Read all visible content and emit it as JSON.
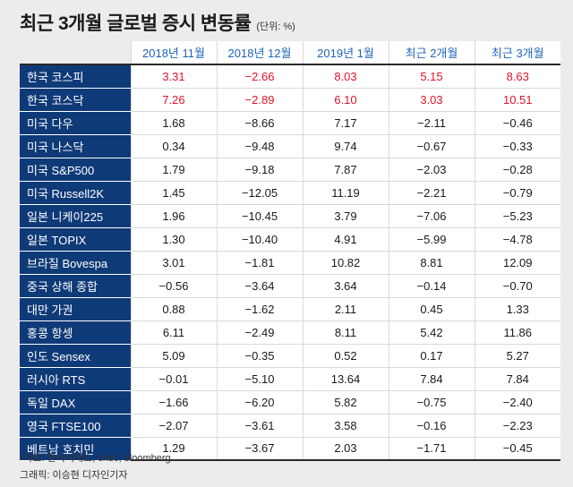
{
  "title": "최근 3개월 글로벌 증시 변동률",
  "unit": "(단위: %)",
  "source": "*자료: 한국거래소, cnbc, bloomberg",
  "credit": "그래픽: 이승현 디자인기자",
  "highlight_color": "#e0142a",
  "header_color": "#1f64b8",
  "row_label_bg": "#0f3a78",
  "chart_data": {
    "type": "table",
    "columns": [
      "2018년 11월",
      "2018년 12월",
      "2019년 1월",
      "최근 2개월",
      "최근 3개월"
    ],
    "rows": [
      {
        "name": "한국 코스피",
        "highlight": true,
        "values": [
          "3.31",
          "−2.66",
          "8.03",
          "5.15",
          "8.63"
        ]
      },
      {
        "name": "한국 코스닥",
        "highlight": true,
        "values": [
          "7.26",
          "−2.89",
          "6.10",
          "3.03",
          "10.51"
        ]
      },
      {
        "name": "미국 다우",
        "highlight": false,
        "values": [
          "1.68",
          "−8.66",
          "7.17",
          "−2.11",
          "−0.46"
        ]
      },
      {
        "name": "미국 나스닥",
        "highlight": false,
        "values": [
          "0.34",
          "−9.48",
          "9.74",
          "−0.67",
          "−0.33"
        ]
      },
      {
        "name": "미국 S&P500",
        "highlight": false,
        "values": [
          "1.79",
          "−9.18",
          "7.87",
          "−2.03",
          "−0.28"
        ]
      },
      {
        "name": "미국 Russell2K",
        "highlight": false,
        "values": [
          "1.45",
          "−12.05",
          "11.19",
          "−2.21",
          "−0.79"
        ]
      },
      {
        "name": "일본 니케이225",
        "highlight": false,
        "values": [
          "1.96",
          "−10.45",
          "3.79",
          "−7.06",
          "−5.23"
        ]
      },
      {
        "name": "일본 TOPIX",
        "highlight": false,
        "values": [
          "1.30",
          "−10.40",
          "4.91",
          "−5.99",
          "−4.78"
        ]
      },
      {
        "name": "브라질 Bovespa",
        "highlight": false,
        "values": [
          "3.01",
          "−1.81",
          "10.82",
          "8.81",
          "12.09"
        ]
      },
      {
        "name": "중국 상해 종합",
        "highlight": false,
        "values": [
          "−0.56",
          "−3.64",
          "3.64",
          "−0.14",
          "−0.70"
        ]
      },
      {
        "name": "대만 가권",
        "highlight": false,
        "values": [
          "0.88",
          "−1.62",
          "2.11",
          "0.45",
          "1.33"
        ]
      },
      {
        "name": "홍콩 항셍",
        "highlight": false,
        "values": [
          "6.11",
          "−2.49",
          "8.11",
          "5.42",
          "11.86"
        ]
      },
      {
        "name": "인도 Sensex",
        "highlight": false,
        "values": [
          "5.09",
          "−0.35",
          "0.52",
          "0.17",
          "5.27"
        ]
      },
      {
        "name": "러시아 RTS",
        "highlight": false,
        "values": [
          "−0.01",
          "−5.10",
          "13.64",
          "7.84",
          "7.84"
        ]
      },
      {
        "name": "독일 DAX",
        "highlight": false,
        "values": [
          "−1.66",
          "−6.20",
          "5.82",
          "−0.75",
          "−2.40"
        ]
      },
      {
        "name": "영국 FTSE100",
        "highlight": false,
        "values": [
          "−2.07",
          "−3.61",
          "3.58",
          "−0.16",
          "−2.23"
        ]
      },
      {
        "name": "베트남 호치민",
        "highlight": false,
        "values": [
          "1.29",
          "−3.67",
          "2.03",
          "−1.71",
          "−0.45"
        ]
      }
    ]
  }
}
